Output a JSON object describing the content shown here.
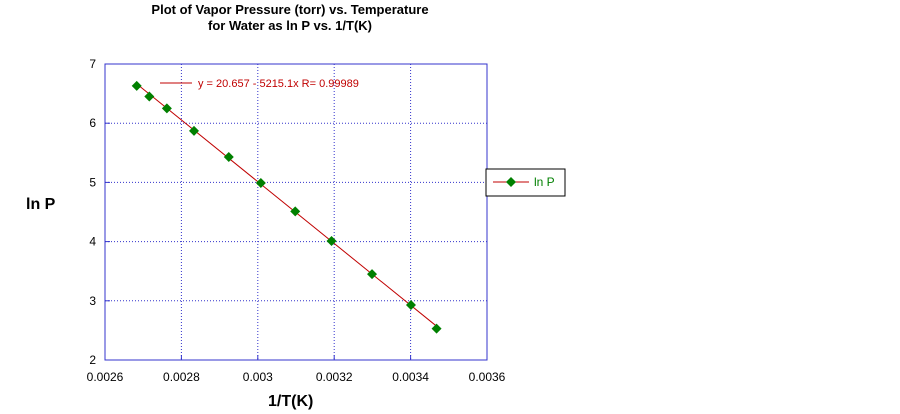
{
  "chart_data": {
    "type": "scatter",
    "title_line1": "Plot of Vapor Pressure (torr) vs. Temperature",
    "title_line2": "for Water as ln P vs. 1/T(K)",
    "xlabel": "1/T(K)",
    "ylabel": "ln P",
    "xlim": [
      0.0026,
      0.0036
    ],
    "ylim": [
      2,
      7
    ],
    "x_ticks": [
      "0.0026",
      "0.0028",
      "0.003",
      "0.0032",
      "0.0034",
      "0.0036"
    ],
    "y_ticks": [
      "2",
      "3",
      "4",
      "5",
      "6",
      "7"
    ],
    "grid": true,
    "legend_position": "right",
    "series": [
      {
        "name": "ln P",
        "marker": "diamond",
        "color": "#008000",
        "x": [
          0.002683,
          0.002716,
          0.002762,
          0.002833,
          0.002924,
          0.003008,
          0.003098,
          0.003193,
          0.003299,
          0.003401,
          0.003468
        ],
        "y": [
          6.63,
          6.45,
          6.25,
          5.87,
          5.43,
          4.99,
          4.51,
          4.01,
          3.45,
          2.93,
          2.53
        ]
      }
    ],
    "fit": {
      "intercept": 20.657,
      "slope": -5215.1,
      "x_range": [
        0.002683,
        0.003468
      ],
      "color": "#c00000",
      "label": "y = 20.657 - 5215.1x   R= 0.99989"
    }
  }
}
